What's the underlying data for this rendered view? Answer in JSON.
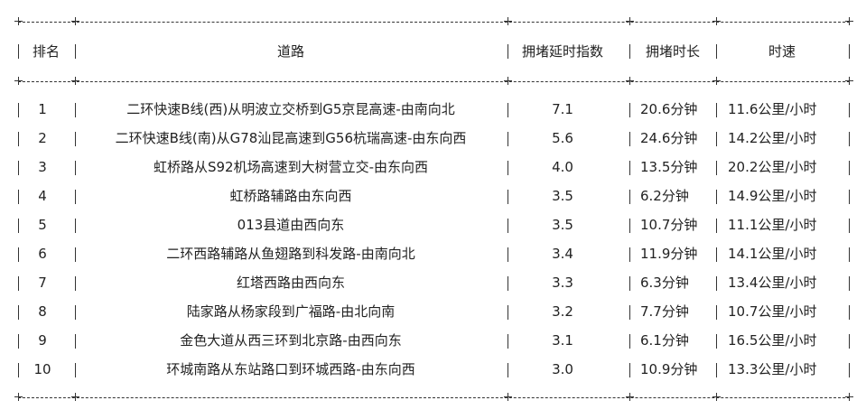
{
  "headers": [
    "排名",
    "道路",
    "拥堵延时指数",
    "拥堵时长",
    "时速"
  ],
  "rows": [
    {
      "rank": "1",
      "road": "二环快速B线(西)从明波立交桥到G5京昆高速-由南向北",
      "index": "7.1",
      "duration": "20.6分钟",
      "speed": "11.6公里/小时"
    },
    {
      "rank": "2",
      "road": "二环快速B线(南)从G78汕昆高速到G56杭瑞高速-由东向西",
      "index": "5.6",
      "duration": "24.6分钟",
      "speed": "14.2公里/小时"
    },
    {
      "rank": "3",
      "road": "虹桥路从S92机场高速到大树营立交-由东向西",
      "index": "4.0",
      "duration": "13.5分钟",
      "speed": "20.2公里/小时"
    },
    {
      "rank": "4",
      "road": "虹桥路辅路由东向西",
      "index": "3.5",
      "duration": "6.2分钟",
      "speed": "14.9公里/小时"
    },
    {
      "rank": "5",
      "road": "013县道由西向东",
      "index": "3.5",
      "duration": "10.7分钟",
      "speed": "11.1公里/小时"
    },
    {
      "rank": "6",
      "road": "二环西路辅路从鱼翅路到科发路-由南向北",
      "index": "3.4",
      "duration": "11.9分钟",
      "speed": "14.1公里/小时"
    },
    {
      "rank": "7",
      "road": "红塔西路由西向东",
      "index": "3.3",
      "duration": "6.3分钟",
      "speed": "13.4公里/小时"
    },
    {
      "rank": "8",
      "road": "陆家路从杨家段到广福路-由北向南",
      "index": "3.2",
      "duration": "7.7分钟",
      "speed": "10.7公里/小时"
    },
    {
      "rank": "9",
      "road": "金色大道从西三环到北京路-由西向东",
      "index": "3.1",
      "duration": "6.1分钟",
      "speed": "16.5公里/小时"
    },
    {
      "rank": "10",
      "road": "环城南路从东站路口到环城西路-由东向西",
      "index": "3.0",
      "duration": "10.9分钟",
      "speed": "13.3公里/小时"
    }
  ]
}
